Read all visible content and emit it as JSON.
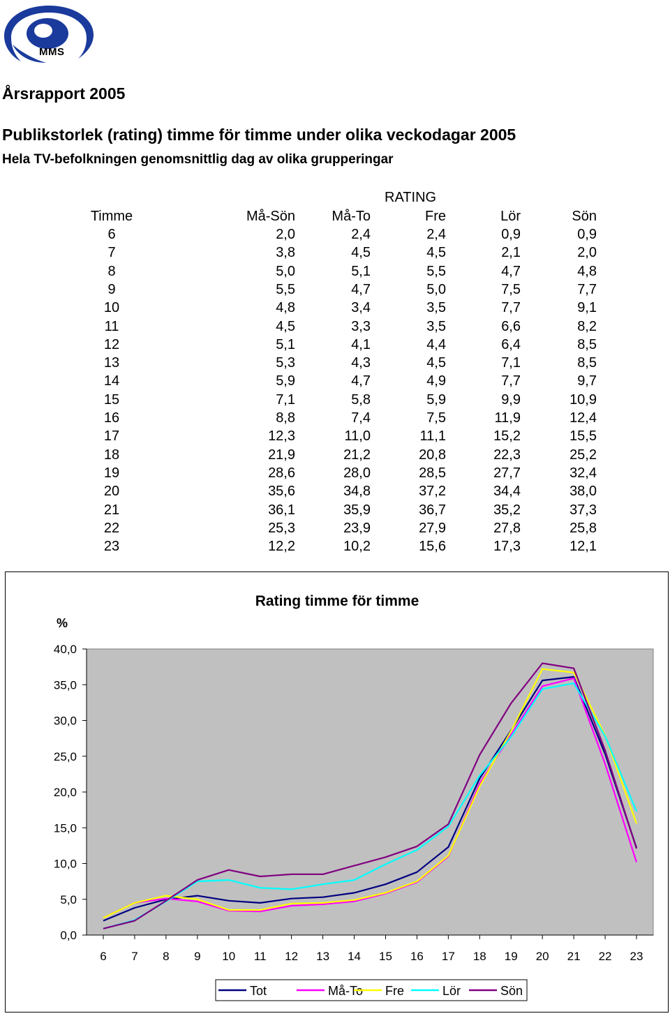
{
  "logo": {
    "icon": "mms-logo-icon",
    "text": "MMS",
    "color": "#1a3a9c"
  },
  "report_title": "Årsrapport 2005",
  "title": "Publikstorlek (rating) timme för timme under olika veckodagar 2005",
  "subtitle": "Hela TV-befolkningen genomsnittlig dag av olika grupperingar",
  "table": {
    "group_header": "RATING",
    "headers": [
      "Timme",
      "Må-Sön",
      "Må-To",
      "Fre",
      "Lör",
      "Sön"
    ],
    "rows": [
      [
        "6",
        "2,0",
        "2,4",
        "2,4",
        "0,9",
        "0,9"
      ],
      [
        "7",
        "3,8",
        "4,5",
        "4,5",
        "2,1",
        "2,0"
      ],
      [
        "8",
        "5,0",
        "5,1",
        "5,5",
        "4,7",
        "4,8"
      ],
      [
        "9",
        "5,5",
        "4,7",
        "5,0",
        "7,5",
        "7,7"
      ],
      [
        "10",
        "4,8",
        "3,4",
        "3,5",
        "7,7",
        "9,1"
      ],
      [
        "11",
        "4,5",
        "3,3",
        "3,5",
        "6,6",
        "8,2"
      ],
      [
        "12",
        "5,1",
        "4,1",
        "4,4",
        "6,4",
        "8,5"
      ],
      [
        "13",
        "5,3",
        "4,3",
        "4,5",
        "7,1",
        "8,5"
      ],
      [
        "14",
        "5,9",
        "4,7",
        "4,9",
        "7,7",
        "9,7"
      ],
      [
        "15",
        "7,1",
        "5,8",
        "5,9",
        "9,9",
        "10,9"
      ],
      [
        "16",
        "8,8",
        "7,4",
        "7,5",
        "11,9",
        "12,4"
      ],
      [
        "17",
        "12,3",
        "11,0",
        "11,1",
        "15,2",
        "15,5"
      ],
      [
        "18",
        "21,9",
        "21,2",
        "20,8",
        "22,3",
        "25,2"
      ],
      [
        "19",
        "28,6",
        "28,0",
        "28,5",
        "27,7",
        "32,4"
      ],
      [
        "20",
        "35,6",
        "34,8",
        "37,2",
        "34,4",
        "38,0"
      ],
      [
        "21",
        "36,1",
        "35,9",
        "36,7",
        "35,2",
        "37,3"
      ],
      [
        "22",
        "25,3",
        "23,9",
        "27,9",
        "27,8",
        "25,8"
      ],
      [
        "23",
        "12,2",
        "10,2",
        "15,6",
        "17,3",
        "12,1"
      ]
    ]
  },
  "chart_data": {
    "type": "line",
    "title": "Rating timme för timme",
    "ylabel": "%",
    "xlabel": "",
    "ylim": [
      0,
      40
    ],
    "y_ticks": [
      "0,0",
      "5,0",
      "10,0",
      "15,0",
      "20,0",
      "25,0",
      "30,0",
      "35,0",
      "40,0"
    ],
    "x": [
      "6",
      "7",
      "8",
      "9",
      "10",
      "11",
      "12",
      "13",
      "14",
      "15",
      "16",
      "17",
      "18",
      "19",
      "20",
      "21",
      "22",
      "23"
    ],
    "grid": false,
    "plot_background": "#c0c0c0",
    "legend_position": "bottom",
    "series": [
      {
        "name": "Tot",
        "color": "#000080",
        "values": [
          2.0,
          3.8,
          5.0,
          5.5,
          4.8,
          4.5,
          5.1,
          5.3,
          5.9,
          7.1,
          8.8,
          12.3,
          21.9,
          28.6,
          35.6,
          36.1,
          25.3,
          12.2
        ]
      },
      {
        "name": "Må-To",
        "color": "#ff00ff",
        "values": [
          2.4,
          4.5,
          5.1,
          4.7,
          3.4,
          3.3,
          4.1,
          4.3,
          4.7,
          5.8,
          7.4,
          11.0,
          21.2,
          28.0,
          34.8,
          35.9,
          23.9,
          10.2
        ]
      },
      {
        "name": "Fre",
        "color": "#ffff00",
        "values": [
          2.4,
          4.5,
          5.5,
          5.0,
          3.5,
          3.5,
          4.4,
          4.5,
          4.9,
          5.9,
          7.5,
          11.1,
          20.8,
          28.5,
          37.2,
          36.7,
          27.9,
          15.6
        ]
      },
      {
        "name": "Lör",
        "color": "#00ffff",
        "values": [
          0.9,
          2.1,
          4.7,
          7.5,
          7.7,
          6.6,
          6.4,
          7.1,
          7.7,
          9.9,
          11.9,
          15.2,
          22.3,
          27.7,
          34.4,
          35.2,
          27.8,
          17.3
        ]
      },
      {
        "name": "Sön",
        "color": "#800080",
        "values": [
          0.9,
          2.0,
          4.8,
          7.7,
          9.1,
          8.2,
          8.5,
          8.5,
          9.7,
          10.9,
          12.4,
          15.5,
          25.2,
          32.4,
          38.0,
          37.3,
          25.8,
          12.1
        ]
      }
    ]
  }
}
